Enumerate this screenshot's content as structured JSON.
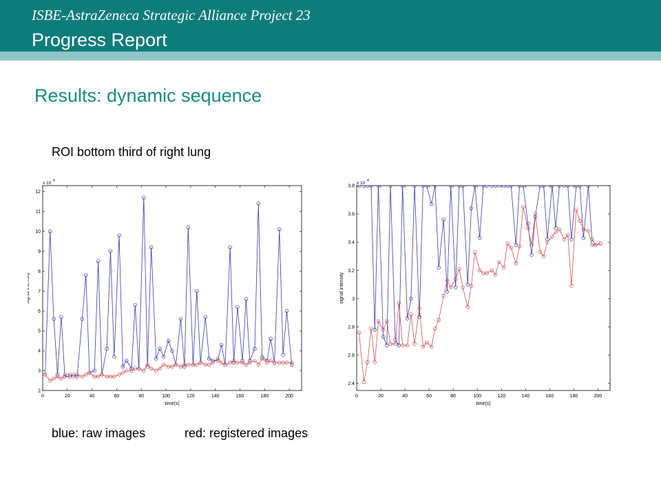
{
  "header": {
    "line1": "ISBE-AstraZeneca Strategic Alliance Project 23",
    "line2": "Progress Report",
    "bg_color": "#0e7d7a",
    "strip_color": "#8fc6c6"
  },
  "section_title": "Results: dynamic sequence",
  "roi_label": "ROI bottom third of right lung",
  "legend": {
    "blue": "blue: raw images",
    "red": "red: registered images"
  },
  "chart_data": [
    {
      "type": "line",
      "title": "",
      "xlabel": "time(s)",
      "ylabel": "signal intensity",
      "exponent_label": "x 10",
      "exponent_power": "4",
      "xlim": [
        0,
        210
      ],
      "ylim": [
        2,
        12.3
      ],
      "xticks": [
        0,
        20,
        40,
        60,
        80,
        100,
        120,
        140,
        160,
        180,
        200
      ],
      "yticks": [
        2,
        3,
        4,
        5,
        6,
        7,
        8,
        9,
        10,
        11,
        12
      ],
      "grid": false,
      "x": [
        2,
        6,
        9,
        12,
        15,
        18,
        22,
        25,
        28,
        32,
        35,
        38,
        42,
        45,
        48,
        52,
        55,
        58,
        62,
        65,
        68,
        72,
        75,
        78,
        82,
        85,
        88,
        92,
        95,
        98,
        102,
        105,
        108,
        112,
        115,
        118,
        122,
        125,
        128,
        132,
        135,
        138,
        142,
        145,
        148,
        152,
        155,
        158,
        162,
        165,
        168,
        172,
        175,
        178,
        182,
        185,
        188,
        192,
        195,
        198,
        202
      ],
      "series": [
        {
          "name": "raw images",
          "color": "#3a3aa8",
          "values": [
            2.8,
            10,
            5.6,
            2.8,
            5.7,
            2.7,
            2.7,
            2.8,
            2.7,
            5.6,
            7.8,
            2.9,
            3.0,
            8.5,
            2.8,
            4.1,
            9.0,
            3.7,
            9.8,
            3.2,
            3.5,
            3.1,
            6.3,
            3.1,
            11.7,
            3.2,
            9.2,
            3.6,
            4.1,
            3.7,
            4.5,
            4.0,
            3.3,
            5.6,
            3.2,
            10.2,
            3.3,
            7.0,
            3.4,
            5.7,
            3.6,
            3.5,
            3.5,
            4.3,
            3.3,
            9.2,
            3.4,
            6.2,
            3.5,
            6.6,
            3.5,
            4.1,
            11.4,
            3.7,
            3.5,
            4.6,
            3.4,
            10.1,
            3.8,
            6.0,
            3.3
          ]
        },
        {
          "name": "registered images",
          "color": "#d05050",
          "values": [
            2.8,
            2.5,
            2.6,
            2.7,
            2.6,
            2.8,
            2.8,
            2.7,
            2.8,
            2.7,
            2.8,
            2.9,
            2.7,
            2.7,
            2.8,
            2.7,
            2.7,
            2.7,
            2.8,
            2.9,
            3.0,
            3.0,
            3.1,
            3.1,
            3.0,
            3.3,
            3.1,
            3.0,
            3.1,
            3.3,
            3.2,
            3.2,
            3.3,
            3.2,
            3.3,
            3.3,
            3.3,
            3.3,
            3.4,
            3.3,
            3.3,
            3.4,
            3.6,
            3.4,
            3.3,
            3.4,
            3.5,
            3.4,
            3.4,
            3.3,
            3.4,
            3.5,
            3.3,
            3.6,
            3.4,
            3.5,
            3.4,
            3.4,
            3.4,
            3.4,
            3.4
          ]
        }
      ]
    },
    {
      "type": "line",
      "title": "",
      "xlabel": "time(s)",
      "ylabel": "signal intensity",
      "exponent_label": "x 10",
      "exponent_power": "4",
      "xlim": [
        0,
        210
      ],
      "ylim": [
        2.35,
        3.8
      ],
      "xticks": [
        0,
        20,
        40,
        60,
        80,
        100,
        120,
        140,
        160,
        180,
        200
      ],
      "yticks": [
        2.4,
        2.6,
        2.8,
        3.0,
        3.2,
        3.4,
        3.6,
        3.8
      ],
      "ytick_labels": [
        "2.4",
        "2.6",
        "2.8",
        "3",
        "3.2",
        "3.4",
        "3.6",
        "3.8"
      ],
      "grid": false,
      "x": [
        2,
        6,
        9,
        12,
        15,
        18,
        22,
        25,
        28,
        32,
        35,
        38,
        42,
        45,
        48,
        52,
        55,
        58,
        62,
        65,
        68,
        72,
        75,
        78,
        82,
        85,
        88,
        92,
        95,
        98,
        102,
        105,
        108,
        112,
        115,
        118,
        122,
        125,
        128,
        132,
        135,
        138,
        142,
        145,
        148,
        152,
        155,
        158,
        162,
        165,
        168,
        172,
        175,
        178,
        182,
        185,
        188,
        192,
        195,
        198,
        202
      ],
      "series": [
        {
          "name": "raw images",
          "color": "#3a3aa8",
          "values": [
            3.8,
            3.8,
            3.8,
            3.8,
            2.78,
            3.8,
            2.73,
            2.67,
            3.8,
            2.71,
            2.67,
            3.8,
            2.86,
            3.0,
            3.8,
            2.87,
            3.8,
            3.8,
            3.67,
            3.8,
            3.22,
            3.56,
            3.05,
            3.8,
            3.08,
            3.8,
            3.8,
            3.1,
            3.64,
            3.8,
            3.43,
            3.8,
            3.8,
            3.8,
            3.8,
            3.8,
            3.8,
            3.8,
            3.8,
            3.38,
            3.8,
            3.8,
            3.53,
            3.31,
            3.58,
            3.8,
            3.8,
            3.42,
            3.8,
            3.5,
            3.8,
            3.8,
            3.8,
            3.42,
            3.8,
            3.8,
            3.43,
            3.8,
            3.42,
            3.38,
            3.39
          ]
        },
        {
          "name": "registered images",
          "color": "#d05050",
          "values": [
            2.76,
            2.41,
            2.55,
            2.79,
            2.55,
            2.84,
            2.78,
            2.84,
            2.68,
            2.68,
            2.97,
            2.67,
            2.67,
            2.89,
            2.68,
            2.93,
            2.66,
            2.69,
            2.66,
            2.79,
            2.85,
            3.02,
            3.13,
            3.08,
            3.14,
            3.21,
            3.08,
            2.94,
            3.09,
            3.33,
            3.2,
            3.18,
            3.18,
            3.2,
            3.17,
            3.26,
            3.22,
            3.39,
            3.36,
            3.25,
            3.37,
            3.65,
            3.5,
            3.38,
            3.6,
            3.33,
            3.3,
            3.4,
            3.44,
            3.47,
            3.49,
            3.42,
            3.45,
            3.09,
            3.63,
            3.55,
            3.49,
            3.48,
            3.38,
            3.38,
            3.39
          ]
        }
      ]
    }
  ]
}
